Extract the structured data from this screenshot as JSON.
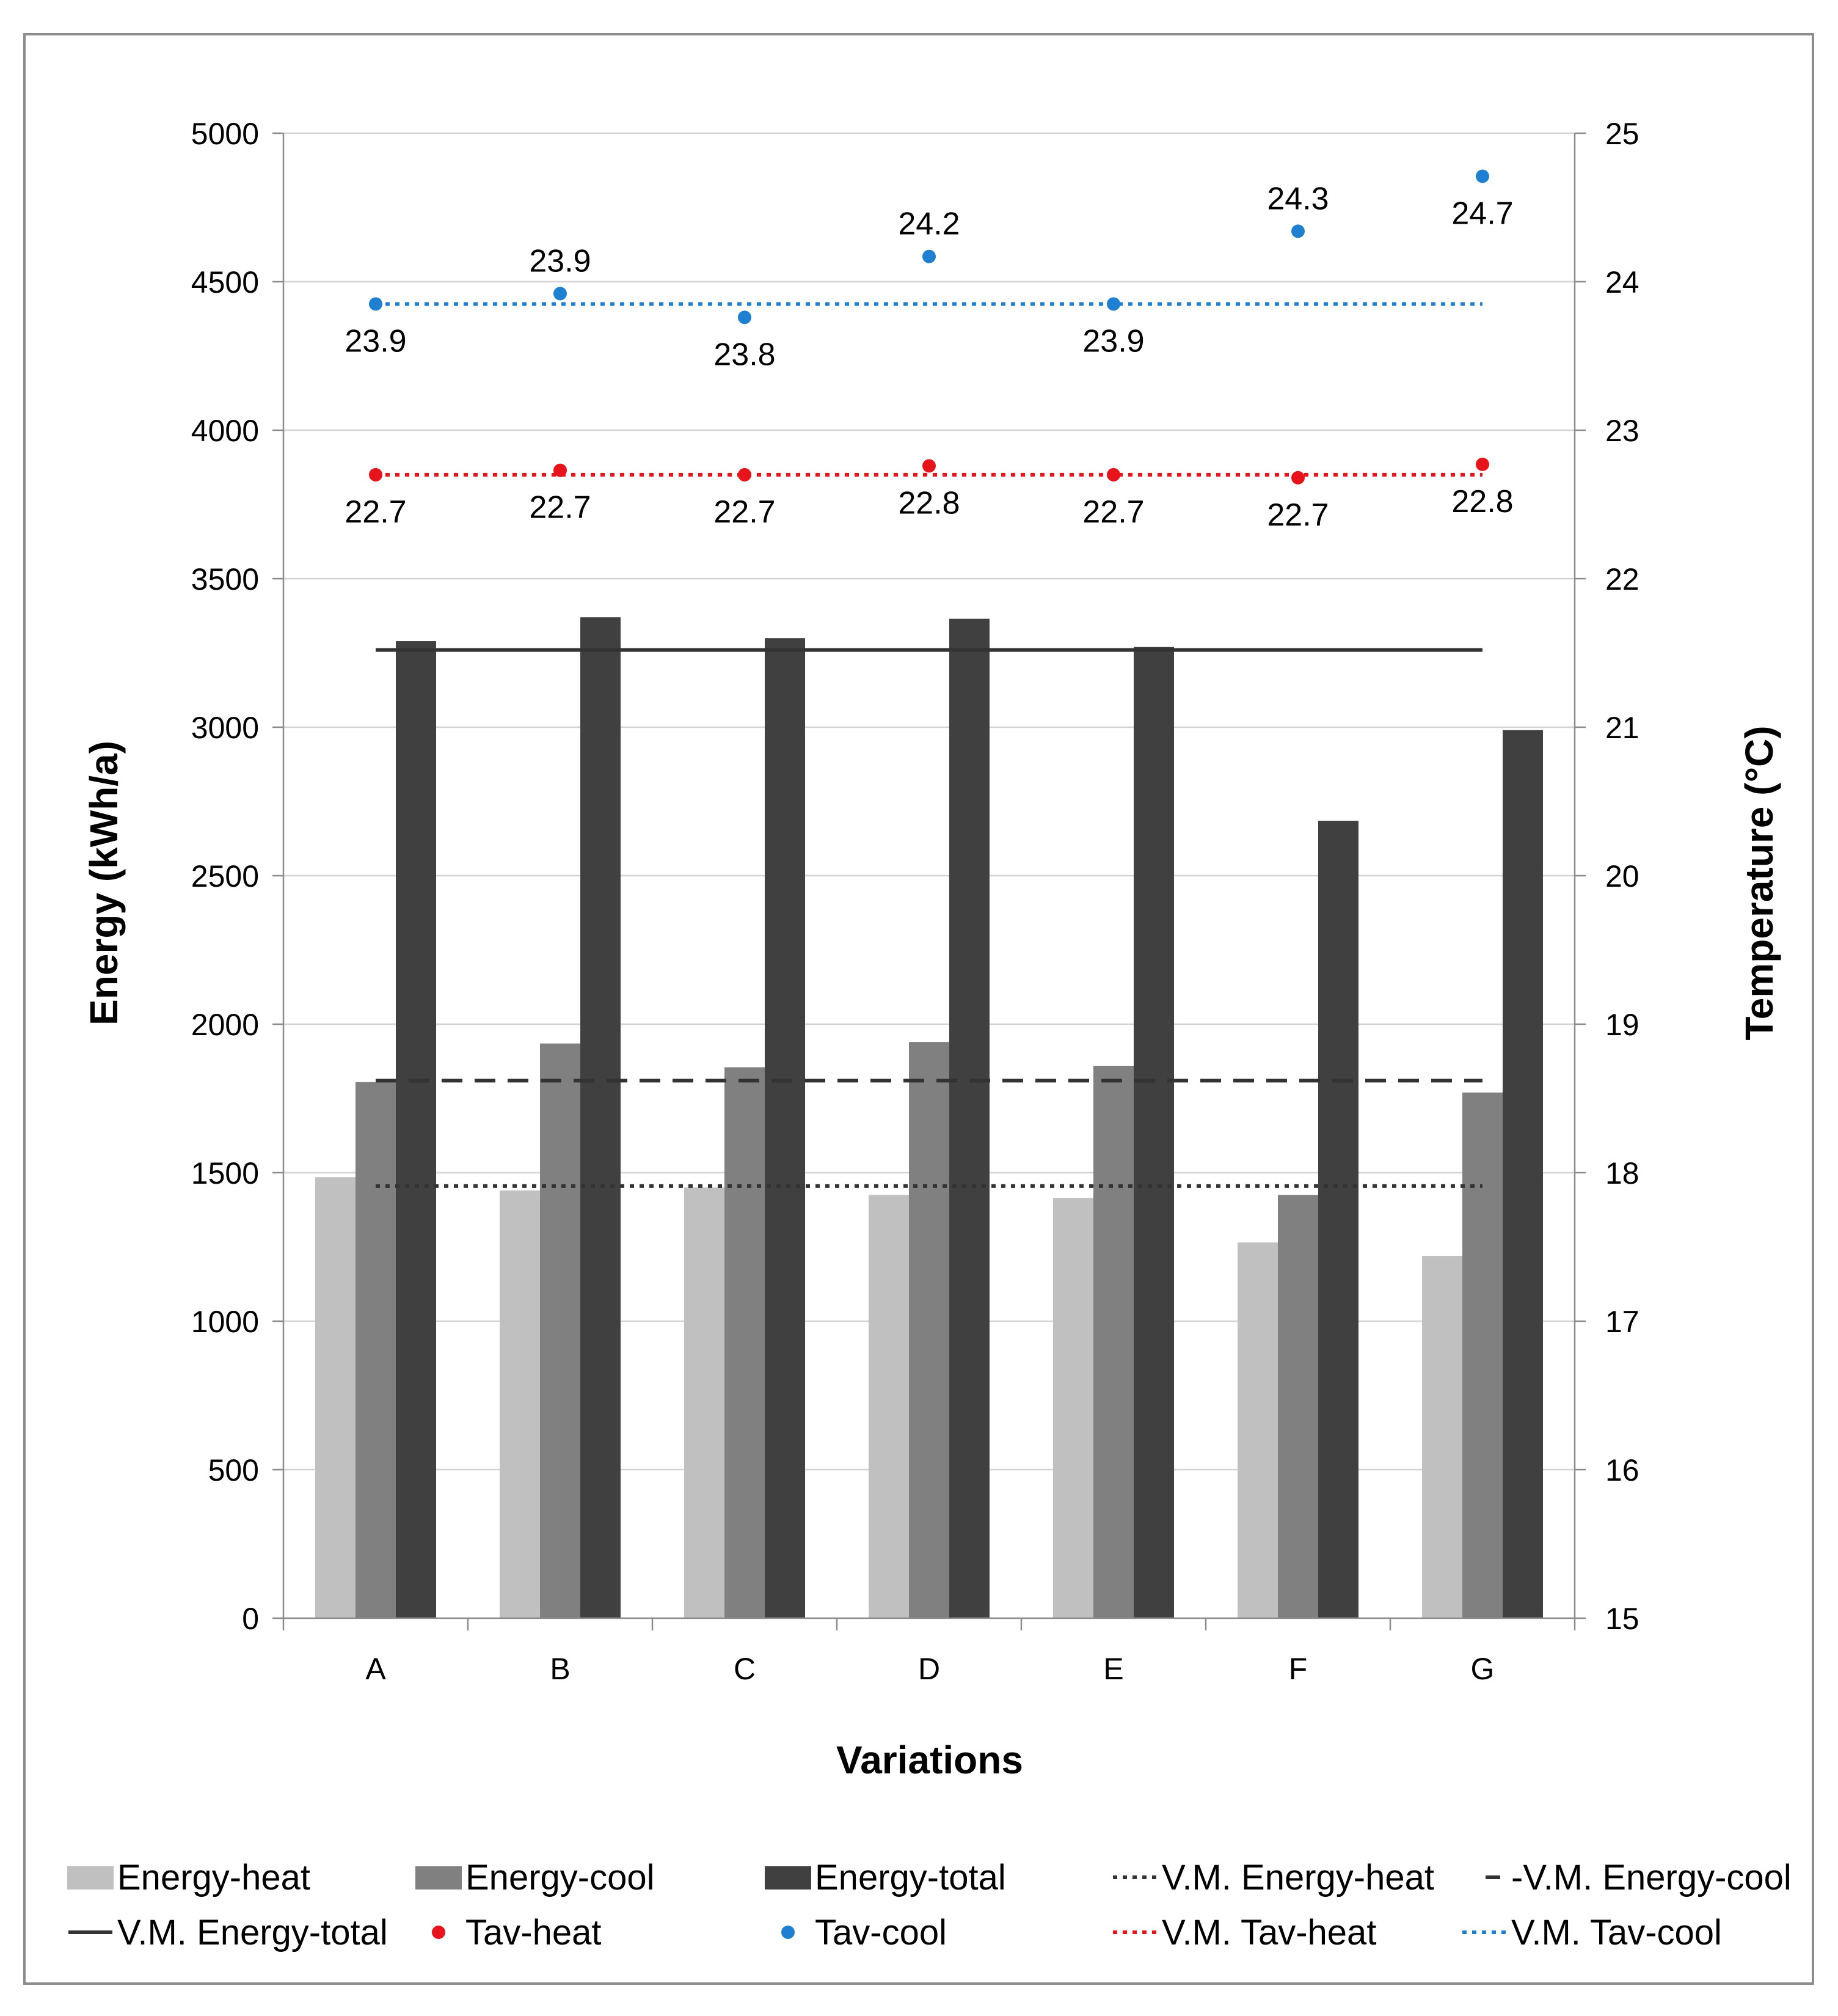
{
  "chart_data": {
    "type": "bar",
    "categories": [
      "A",
      "B",
      "C",
      "D",
      "E",
      "F",
      "G"
    ],
    "xlabel": "Variations",
    "ylabel": "Energy (kWh/a)",
    "y2label": "Temperature (°C)",
    "ylim": [
      0,
      5000
    ],
    "y2lim": [
      15,
      25
    ],
    "yticks": [
      "0",
      "500",
      "1000",
      "1500",
      "2000",
      "2500",
      "3000",
      "3500",
      "4000",
      "4500",
      "5000"
    ],
    "y2ticks": [
      "15",
      "16",
      "17",
      "18",
      "19",
      "20",
      "21",
      "22",
      "23",
      "24",
      "25"
    ],
    "grid": true,
    "legend_position": "bottom",
    "bar_series": [
      {
        "name": "Energy-heat",
        "color": "#c0c0c0",
        "values": [
          1485,
          1440,
          1450,
          1425,
          1415,
          1265,
          1220
        ]
      },
      {
        "name": "Energy-cool",
        "color": "#808080",
        "values": [
          1805,
          1935,
          1855,
          1940,
          1860,
          1425,
          1770
        ]
      },
      {
        "name": "Energy-total",
        "color": "#404040",
        "values": [
          3290,
          3370,
          3300,
          3365,
          3270,
          2685,
          2990
        ]
      }
    ],
    "reference_lines": [
      {
        "name": "V.M. Energy-heat",
        "axis": "left",
        "value": 1455,
        "color": "#333333",
        "style": "dotted"
      },
      {
        "name": "V.M. Energy-cool",
        "axis": "left",
        "value": 1810,
        "color": "#333333",
        "style": "dashed"
      },
      {
        "name": "V.M. Energy-total",
        "axis": "left",
        "value": 3260,
        "color": "#333333",
        "style": "solid"
      },
      {
        "name": "V.M. Tav-heat",
        "axis": "right",
        "value": 22.7,
        "color": "#e8141c",
        "style": "dotted"
      },
      {
        "name": "V.M. Tav-cool",
        "axis": "right",
        "value": 23.85,
        "color": "#1f7fd1",
        "style": "dotted"
      }
    ],
    "point_series": [
      {
        "name": "Tav-heat",
        "axis": "right",
        "color": "#e8141c",
        "values": [
          22.7,
          22.73,
          22.7,
          22.76,
          22.7,
          22.68,
          22.77
        ],
        "labels": [
          "22.7",
          "22.7",
          "22.7",
          "22.8",
          "22.7",
          "22.7",
          "22.8"
        ],
        "label_side": [
          "below",
          "below",
          "below",
          "below",
          "below",
          "below",
          "below"
        ]
      },
      {
        "name": "Tav-cool",
        "axis": "right",
        "color": "#1f7fd1",
        "values": [
          23.85,
          23.92,
          23.76,
          24.17,
          23.85,
          24.34,
          24.71
        ],
        "labels": [
          "23.9",
          "23.9",
          "23.8",
          "24.2",
          "23.9",
          "24.3",
          "24.7"
        ],
        "label_side": [
          "below",
          "above",
          "below",
          "above",
          "below",
          "above",
          "below"
        ]
      }
    ],
    "legend": [
      {
        "name": "Energy-heat",
        "marker": "bar",
        "color": "#c0c0c0"
      },
      {
        "name": "Energy-cool",
        "marker": "bar",
        "color": "#808080"
      },
      {
        "name": "Energy-total",
        "marker": "bar",
        "color": "#404040"
      },
      {
        "name": "V.M. Energy-heat",
        "marker": "dotted",
        "color": "#333333"
      },
      {
        "name": "-V.M. Energy-cool",
        "marker": "dashed",
        "color": "#333333"
      },
      {
        "name": "V.M. Energy-total",
        "marker": "solid",
        "color": "#333333"
      },
      {
        "name": "Tav-heat",
        "marker": "dot",
        "color": "#e8141c"
      },
      {
        "name": "Tav-cool",
        "marker": "dot",
        "color": "#1f7fd1"
      },
      {
        "name": "V.M. Tav-heat",
        "marker": "dotted",
        "color": "#e8141c"
      },
      {
        "name": "V.M. Tav-cool",
        "marker": "dotted",
        "color": "#1f7fd1"
      }
    ]
  }
}
